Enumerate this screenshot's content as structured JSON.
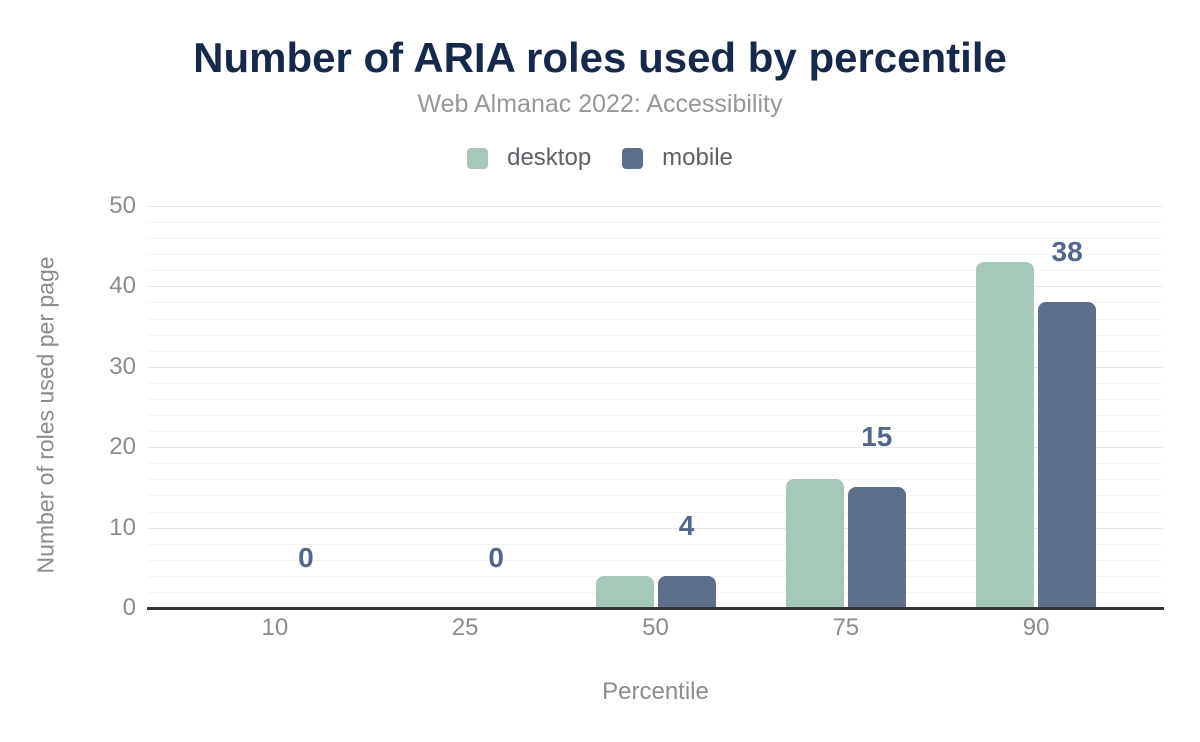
{
  "chart_data": {
    "type": "bar",
    "title": "Number of ARIA roles used by percentile",
    "subtitle": "Web Almanac 2022: Accessibility",
    "xlabel": "Percentile",
    "ylabel": "Number of roles used per page",
    "categories": [
      "10",
      "25",
      "50",
      "75",
      "90"
    ],
    "series": [
      {
        "name": "desktop",
        "color": "#a6c9b7",
        "values": [
          0,
          0,
          4,
          16,
          43
        ]
      },
      {
        "name": "mobile",
        "color": "#5e6f8b",
        "values": [
          0,
          0,
          4,
          15,
          38
        ]
      }
    ],
    "value_labels": {
      "series": "mobile",
      "values": [
        "0",
        "0",
        "4",
        "15",
        "38"
      ]
    },
    "ylim": [
      0,
      50
    ],
    "y_major_step": 10,
    "y_minor_step": 2,
    "y_ticks": [
      "0",
      "10",
      "20",
      "30",
      "40",
      "50"
    ],
    "legend_position": "top",
    "grid": "horizontal"
  },
  "colors": {
    "background": "#ffffff",
    "title": "#152a4a",
    "subtitle": "#96979b",
    "axis_text": "#8b8b90",
    "legend_text": "#5f6066",
    "value_label": "#51688c",
    "axis_line": "#35363a",
    "major_grid": "#e6e6e8",
    "minor_grid": "#f4f4f6"
  }
}
